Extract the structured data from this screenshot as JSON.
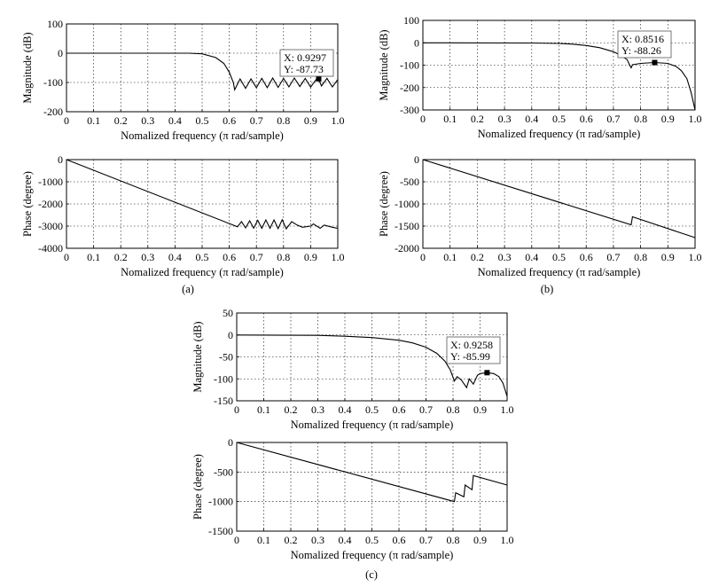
{
  "chart_data": [
    {
      "type": "line",
      "panel": "a",
      "kind": "magnitude",
      "xlabel": "Nomalized frequency (π rad/sample)",
      "ylabel": "Magnitude (dB)",
      "xlim": [
        0,
        1
      ],
      "ylim": [
        -200,
        100
      ],
      "xticks": [
        "0",
        "0.1",
        "0.2",
        "0.3",
        "0.4",
        "0.5",
        "0.6",
        "0.7",
        "0.8",
        "0.9",
        "1.0"
      ],
      "yticks": [
        "100",
        "0",
        "-100",
        "-200"
      ],
      "grid": true,
      "x": [
        0,
        0.45,
        0.5,
        0.55,
        0.58,
        0.6,
        0.615,
        0.62,
        0.64,
        0.66,
        0.68,
        0.7,
        0.72,
        0.74,
        0.76,
        0.78,
        0.8,
        0.82,
        0.84,
        0.86,
        0.88,
        0.9,
        0.92,
        0.9297,
        0.94,
        0.96,
        0.98,
        1.0
      ],
      "y": [
        0,
        0,
        -2,
        -15,
        -35,
        -65,
        -100,
        -125,
        -88,
        -120,
        -88,
        -118,
        -86,
        -118,
        -85,
        -117,
        -86,
        -115,
        -85,
        -114,
        -86,
        -116,
        -90,
        -87.73,
        -112,
        -86,
        -115,
        -90
      ],
      "datatip": {
        "x": "X: 0.9297",
        "y": "Y: -87.73",
        "xv": 0.9297,
        "yv": -87.73
      }
    },
    {
      "type": "line",
      "panel": "a",
      "kind": "phase",
      "xlabel": "Nomalized frequency (π rad/sample)",
      "ylabel": "Phase (degree)",
      "xlim": [
        0,
        1
      ],
      "ylim": [
        -4000,
        0
      ],
      "xticks": [
        "0",
        "0.1",
        "0.2",
        "0.3",
        "0.4",
        "0.5",
        "0.6",
        "0.7",
        "0.8",
        "0.9",
        "1.0"
      ],
      "yticks": [
        "0",
        "-1000",
        "-2000",
        "-3000",
        "-4000"
      ],
      "grid": true,
      "x": [
        0,
        0.62,
        0.63,
        0.645,
        0.66,
        0.675,
        0.69,
        0.705,
        0.72,
        0.735,
        0.75,
        0.765,
        0.78,
        0.795,
        0.81,
        0.83,
        0.85,
        0.87,
        0.9,
        0.91,
        0.935,
        0.95,
        0.98,
        1.0
      ],
      "y": [
        0,
        -2980,
        -3030,
        -2800,
        -3080,
        -2760,
        -3090,
        -2740,
        -3100,
        -2720,
        -3100,
        -2720,
        -3110,
        -2710,
        -3120,
        -2800,
        -2950,
        -3050,
        -3000,
        -2900,
        -3100,
        -2950,
        -3050,
        -3100
      ]
    },
    {
      "type": "line",
      "panel": "b",
      "kind": "magnitude",
      "xlabel": "Nomalized frequency (π rad/sample)",
      "ylabel": "Magnitude (dB)",
      "xlim": [
        0,
        1
      ],
      "ylim": [
        -300,
        100
      ],
      "xticks": [
        "0",
        "0.1",
        "0.2",
        "0.3",
        "0.4",
        "0.5",
        "0.6",
        "0.7",
        "0.8",
        "0.9",
        "1.0"
      ],
      "yticks": [
        "100",
        "0",
        "-100",
        "-200",
        "-300"
      ],
      "grid": true,
      "x": [
        0,
        0.4,
        0.5,
        0.55,
        0.6,
        0.65,
        0.7,
        0.73,
        0.75,
        0.76,
        0.765,
        0.77,
        0.8,
        0.8516,
        0.9,
        0.93,
        0.95,
        0.97,
        0.985,
        1.0
      ],
      "y": [
        0,
        -1,
        -3,
        -6,
        -12,
        -22,
        -40,
        -58,
        -75,
        -100,
        -112,
        -98,
        -92,
        -88.26,
        -92,
        -105,
        -125,
        -160,
        -220,
        -300
      ],
      "datatip": {
        "x": "X: 0.8516",
        "y": "Y: -88.26",
        "xv": 0.8516,
        "yv": -88.26
      }
    },
    {
      "type": "line",
      "panel": "b",
      "kind": "phase",
      "xlabel": "Nomalized frequency (π rad/sample)",
      "ylabel": "Phase (degree)",
      "xlim": [
        0,
        1
      ],
      "ylim": [
        -2000,
        0
      ],
      "xticks": [
        "0",
        "0.1",
        "0.2",
        "0.3",
        "0.4",
        "0.5",
        "0.6",
        "0.7",
        "0.8",
        "0.9",
        "1.0"
      ],
      "yticks": [
        "0",
        "-500",
        "-1000",
        "-1500",
        "-2000"
      ],
      "grid": true,
      "x": [
        0,
        0.765,
        0.77,
        1.0
      ],
      "y": [
        0,
        -1470,
        -1290,
        -1760
      ]
    },
    {
      "type": "line",
      "panel": "c",
      "kind": "magnitude",
      "xlabel": "Nomalized frequency (π rad/sample)",
      "ylabel": "Magnitude (dB)",
      "xlim": [
        0,
        1
      ],
      "ylim": [
        -150,
        50
      ],
      "xticks": [
        "0",
        "0.1",
        "0.2",
        "0.3",
        "0.4",
        "0.5",
        "0.6",
        "0.7",
        "0.8",
        "0.9",
        "1.0"
      ],
      "yticks": [
        "50",
        "0",
        "-50",
        "-100",
        "-150"
      ],
      "grid": true,
      "x": [
        0,
        0.3,
        0.4,
        0.5,
        0.6,
        0.65,
        0.7,
        0.74,
        0.77,
        0.79,
        0.805,
        0.815,
        0.83,
        0.85,
        0.86,
        0.875,
        0.89,
        0.9,
        0.9258,
        0.95,
        0.97,
        0.985,
        1.0
      ],
      "y": [
        0,
        -1,
        -3,
        -6,
        -12,
        -18,
        -28,
        -42,
        -60,
        -80,
        -105,
        -95,
        -102,
        -120,
        -100,
        -112,
        -92,
        -88,
        -85.99,
        -88,
        -95,
        -110,
        -140
      ],
      "datatip": {
        "x": "X: 0.9258",
        "y": "Y: -85.99",
        "xv": 0.9258,
        "yv": -85.99
      }
    },
    {
      "type": "line",
      "panel": "c",
      "kind": "phase",
      "xlabel": "Nomalized frequency (π rad/sample)",
      "ylabel": "Phase (degree)",
      "xlim": [
        0,
        1
      ],
      "ylim": [
        -1500,
        0
      ],
      "xticks": [
        "0",
        "0.1",
        "0.2",
        "0.3",
        "0.4",
        "0.5",
        "0.6",
        "0.7",
        "0.8",
        "0.9",
        "1.0"
      ],
      "yticks": [
        "0",
        "-500",
        "-1000",
        "-1500"
      ],
      "grid": true,
      "x": [
        0,
        0.805,
        0.81,
        0.84,
        0.845,
        0.87,
        0.875,
        1.0
      ],
      "y": [
        0,
        -1000,
        -850,
        -920,
        -720,
        -800,
        -560,
        -720
      ]
    }
  ],
  "captions": [
    "(a)",
    "(b)",
    "(c)"
  ]
}
